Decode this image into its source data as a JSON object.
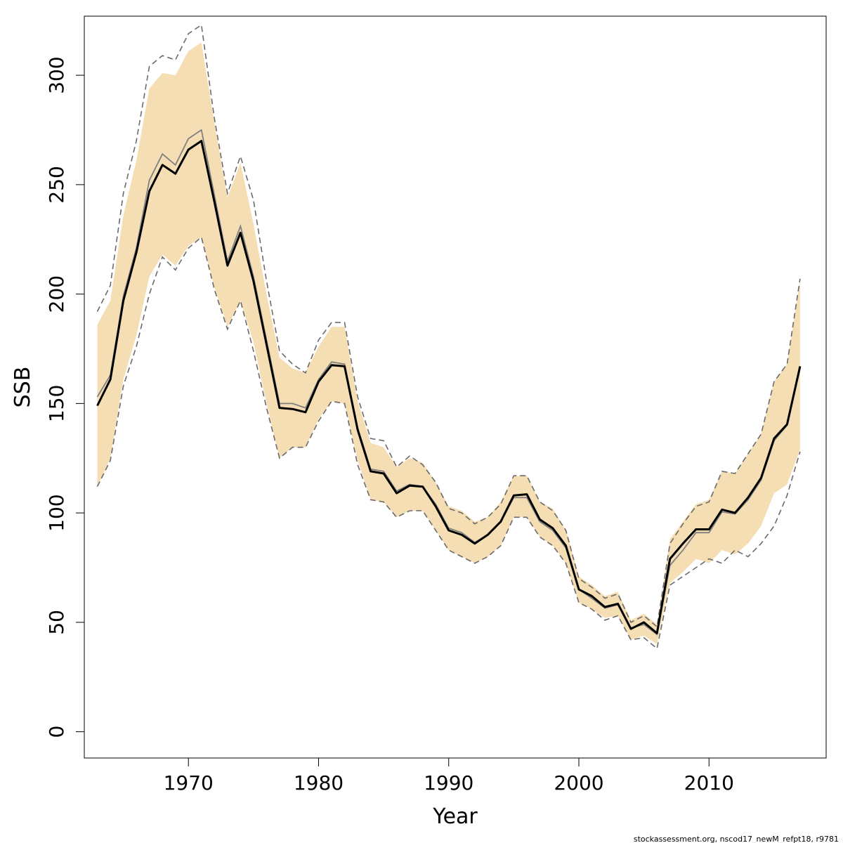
{
  "chart_data": {
    "type": "line",
    "xlabel": "Year",
    "ylabel": "SSB",
    "xlim": [
      1962,
      2019
    ],
    "ylim": [
      -12,
      327
    ],
    "x_ticks": [
      1970,
      1980,
      1990,
      2000,
      2010
    ],
    "y_ticks": [
      0,
      50,
      100,
      150,
      200,
      250,
      300
    ],
    "grid": false,
    "legend": "none",
    "footer": "stockassessment.org, nscod17_newM_refpt18, r9781",
    "colors": {
      "band": "#f5deb3",
      "estimate": "#000000",
      "previous": "#808080",
      "dashed_bounds": "#6b6b6b"
    },
    "years": [
      1963,
      1964,
      1965,
      1966,
      1967,
      1968,
      1969,
      1970,
      1971,
      1972,
      1973,
      1974,
      1975,
      1976,
      1977,
      1978,
      1979,
      1980,
      1981,
      1982,
      1983,
      1984,
      1985,
      1986,
      1987,
      1988,
      1989,
      1990,
      1991,
      1992,
      1993,
      1994,
      1995,
      1996,
      1997,
      1998,
      1999,
      2000,
      2001,
      2002,
      2003,
      2004,
      2005,
      2006,
      2007,
      2008,
      2009,
      2010,
      2011,
      2012,
      2013,
      2014,
      2015,
      2016,
      2017
    ],
    "series": [
      {
        "role": "estimate",
        "values": [
          149,
          161,
          197,
          219,
          247,
          259,
          255,
          266,
          270,
          242,
          213,
          228,
          206,
          177,
          148,
          147.5,
          146,
          160,
          167.5,
          167,
          138,
          119,
          118,
          109,
          112.5,
          112,
          103,
          92,
          90,
          86,
          90,
          96,
          108,
          108.5,
          97,
          93,
          85,
          65,
          62,
          57,
          58.5,
          47,
          50,
          45,
          79,
          86,
          92.5,
          92.5,
          101.5,
          100,
          107,
          116,
          134,
          140.5,
          167
        ]
      },
      {
        "role": "previous",
        "values": [
          153,
          163,
          199,
          221,
          252,
          264,
          259,
          271,
          275,
          245,
          215,
          231,
          208,
          179,
          150,
          150,
          148,
          161,
          169,
          168,
          139,
          120,
          119,
          110,
          113,
          112,
          104,
          93,
          91,
          86.5,
          90,
          96,
          107,
          107,
          96,
          92,
          84,
          65,
          61,
          56.5,
          58,
          47.5,
          49,
          44.5,
          76,
          83,
          91,
          91,
          100.5,
          99.5,
          106,
          115,
          133,
          140,
          166
        ]
      },
      {
        "role": "band_upper",
        "values": [
          186,
          197,
          236,
          261,
          294,
          301,
          300,
          311,
          315,
          278,
          244,
          260,
          232,
          200,
          171,
          166,
          164,
          176,
          185,
          185,
          151,
          132,
          130,
          121,
          125,
          123,
          114,
          103,
          101,
          96,
          98,
          105,
          117,
          117,
          105,
          102,
          92,
          71,
          67,
          62,
          64,
          51,
          54,
          49,
          88,
          96,
          104,
          106,
          119,
          118,
          127,
          136,
          160,
          168,
          206
        ]
      },
      {
        "role": "band_lower",
        "values": [
          112,
          125,
          161,
          181,
          208,
          218,
          213,
          222,
          226,
          203,
          185,
          197,
          178,
          150,
          125,
          130,
          130,
          143,
          151,
          150,
          124,
          106,
          105,
          98,
          101,
          101,
          92,
          83,
          80,
          77,
          80,
          85,
          98,
          98,
          89,
          85,
          77,
          59,
          56,
          52,
          53,
          42,
          44,
          40,
          68,
          73,
          79,
          77,
          83,
          81,
          86,
          94,
          109,
          113,
          129
        ]
      },
      {
        "role": "upper_bound",
        "values": [
          192,
          204,
          246,
          270,
          304,
          309,
          307,
          319,
          323,
          280,
          246,
          263,
          243,
          206,
          174,
          168,
          164,
          179,
          187,
          187,
          153,
          134,
          133,
          121,
          126,
          122,
          114,
          102,
          100,
          95,
          98,
          104,
          117,
          117,
          105,
          101,
          92,
          70,
          66,
          61,
          63,
          50,
          53,
          48,
          86,
          95,
          103,
          105,
          119,
          118,
          127,
          136,
          160,
          168,
          207
        ]
      },
      {
        "role": "lower_bound",
        "values": [
          112,
          124,
          158,
          176,
          200,
          217,
          211,
          221,
          226,
          202,
          184,
          197,
          174,
          148,
          125,
          130,
          130,
          142,
          151,
          150,
          122,
          106,
          105,
          98,
          101,
          101,
          92,
          83,
          80,
          77,
          80,
          85,
          98,
          98,
          89,
          85,
          77,
          59,
          56,
          51,
          53,
          42,
          43,
          38,
          67,
          71,
          75,
          79,
          77,
          83,
          80,
          86,
          94,
          108,
          128
        ]
      }
    ]
  }
}
